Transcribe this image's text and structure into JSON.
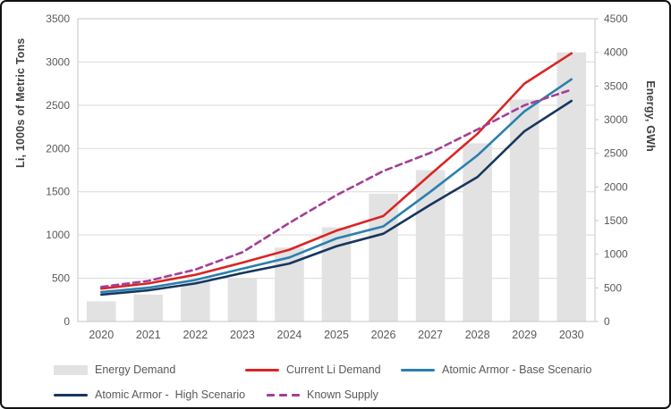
{
  "figure_name": "Lithium demand vs supply and energy demand forecast chart",
  "chart_data": {
    "type": "combo (bar + line)",
    "categories": [
      "2020",
      "2021",
      "2022",
      "2023",
      "2024",
      "2025",
      "2026",
      "2027",
      "2028",
      "2029",
      "2030"
    ],
    "left_axis": {
      "title": "Li, 1000s of Metric Tons",
      "min": 0,
      "max": 3500,
      "tick_step": 500,
      "ticks": [
        0,
        500,
        1000,
        1500,
        2000,
        2500,
        3000,
        3500
      ]
    },
    "right_axis": {
      "title": "Energy, GWh",
      "min": 0,
      "max": 4500,
      "tick_step": 500,
      "ticks": [
        0,
        500,
        1000,
        1500,
        2000,
        2500,
        3000,
        3500,
        4000,
        4500
      ]
    },
    "grid": true,
    "legend_position": "bottom",
    "series": [
      {
        "name": "Energy Demand",
        "type": "bar",
        "axis": "right",
        "color": "#e2e2e2",
        "values": [
          300,
          400,
          600,
          650,
          1100,
          1400,
          1900,
          2250,
          2650,
          3300,
          4000
        ]
      },
      {
        "name": "Current Li Demand",
        "type": "line",
        "axis": "left",
        "color": "#d92525",
        "dashed": false,
        "values": [
          380,
          440,
          540,
          680,
          830,
          1050,
          1220,
          1700,
          2170,
          2750,
          3100
        ]
      },
      {
        "name": "Atomic Armor - Base Scenario",
        "type": "line",
        "axis": "left",
        "color": "#2b7fae",
        "dashed": false,
        "values": [
          340,
          390,
          480,
          610,
          740,
          960,
          1100,
          1500,
          1920,
          2430,
          2800
        ]
      },
      {
        "name": "Atomic Armor -  High Scenario",
        "type": "line",
        "axis": "left",
        "color": "#17365d",
        "dashed": false,
        "values": [
          310,
          360,
          440,
          560,
          670,
          870,
          1015,
          1350,
          1670,
          2200,
          2550
        ]
      },
      {
        "name": "Known Supply",
        "type": "line",
        "axis": "left",
        "color": "#a23f97",
        "dashed": true,
        "values": [
          400,
          470,
          600,
          800,
          1140,
          1460,
          1740,
          1950,
          2220,
          2500,
          2680
        ]
      }
    ]
  },
  "legend": {
    "row1": [
      {
        "label": "Energy Demand",
        "swatch": "bar",
        "color": "#e2e2e2"
      },
      {
        "label": "Current Li Demand",
        "swatch": "line",
        "color": "#d92525"
      },
      {
        "label": "Atomic Armor - Base Scenario",
        "swatch": "line",
        "color": "#2b7fae"
      }
    ],
    "row2": [
      {
        "label": "Atomic Armor -  High Scenario",
        "swatch": "line",
        "color": "#17365d"
      },
      {
        "label": "Known Supply",
        "swatch": "dash",
        "color": "#a23f97"
      }
    ]
  },
  "style": {
    "gridline_color": "#d9d9d9",
    "axis_frame_color": "#c6c6c6",
    "tick_label_color": "#595959",
    "bar_color": "#e2e2e2"
  }
}
